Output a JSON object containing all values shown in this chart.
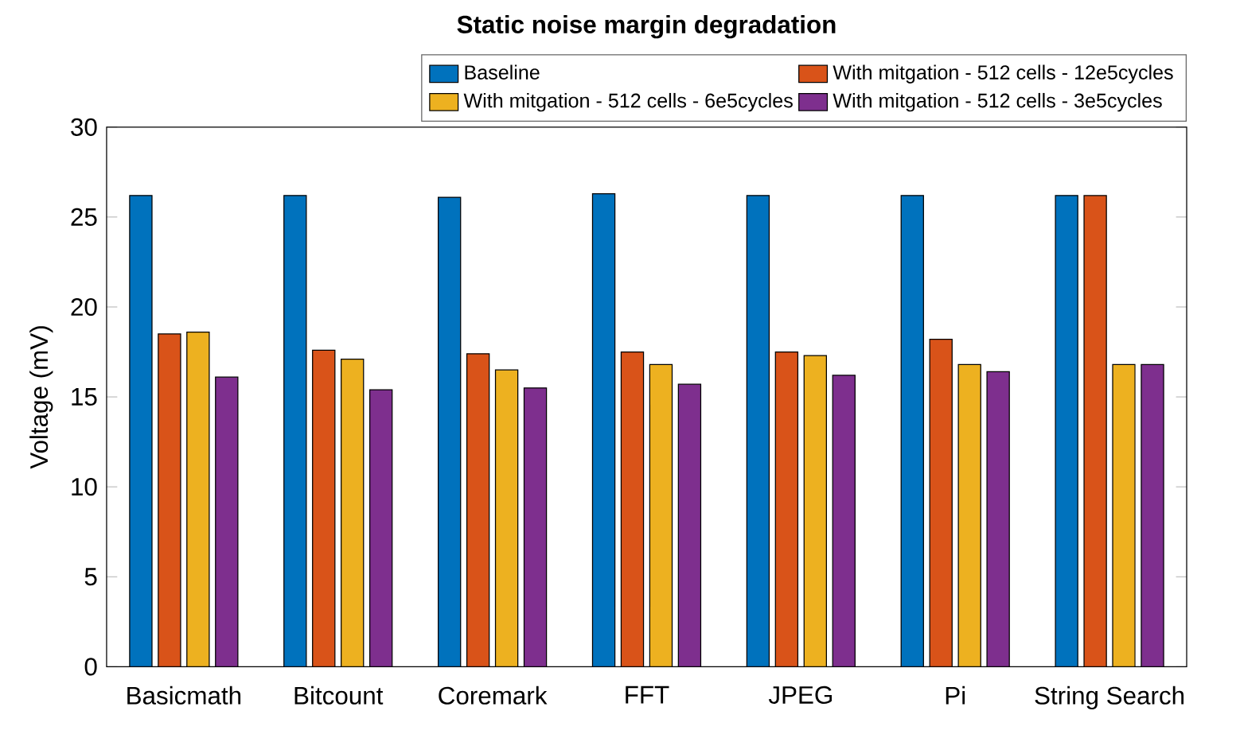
{
  "chart_data": {
    "type": "bar",
    "title": "Static noise margin degradation",
    "ylabel": "Voltage (mV)",
    "categories": [
      "Basicmath",
      "Bitcount",
      "Coremark",
      "FFT",
      "JPEG",
      "Pi",
      "String Search"
    ],
    "series": [
      {
        "name": "Baseline",
        "color": "#0072bd",
        "values": [
          26.2,
          26.2,
          26.1,
          26.3,
          26.2,
          26.2,
          26.2
        ]
      },
      {
        "name": "With mitgation - 512 cells - 12e5cycles",
        "color": "#d95319",
        "values": [
          18.5,
          17.6,
          17.4,
          17.5,
          17.5,
          18.2,
          26.2
        ]
      },
      {
        "name": "With mitgation - 512 cells - 6e5cycles",
        "color": "#edb120",
        "values": [
          18.6,
          17.1,
          16.5,
          16.8,
          17.3,
          16.8,
          16.8
        ]
      },
      {
        "name": "With mitgation - 512 cells - 3e5cycles",
        "color": "#7e2f8e",
        "values": [
          16.1,
          15.4,
          15.5,
          15.7,
          16.2,
          16.4,
          16.8
        ]
      }
    ],
    "ylim": [
      0,
      30
    ],
    "yticks": [
      0,
      5,
      10,
      15,
      20,
      25,
      30
    ],
    "grid": false,
    "legend": "top right"
  }
}
